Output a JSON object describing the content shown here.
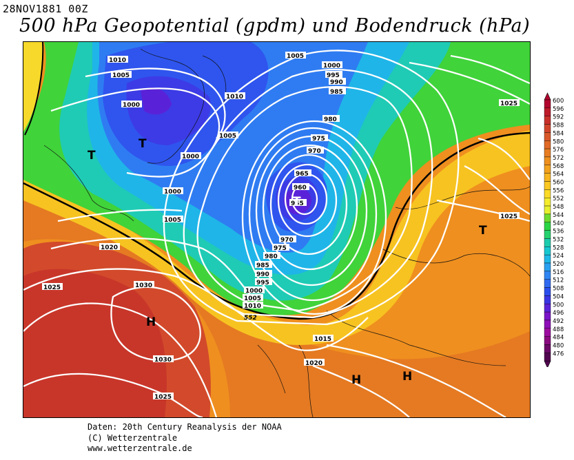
{
  "header": {
    "date": "28NOV1881 00Z",
    "title": "500 hPa Geopotential (gpdm) und Bodendruck (hPa)"
  },
  "footer": {
    "line1": "Daten: 20th Century Reanalysis der NOAA",
    "line2": "(C) Wetterzentrale",
    "line3": "www.wetterzentrale.de"
  },
  "legend": {
    "levels": [
      "600",
      "596",
      "592",
      "588",
      "584",
      "580",
      "576",
      "572",
      "568",
      "564",
      "560",
      "556",
      "552",
      "548",
      "544",
      "540",
      "536",
      "532",
      "528",
      "524",
      "520",
      "516",
      "512",
      "508",
      "504",
      "500",
      "496",
      "492",
      "488",
      "484",
      "480",
      "476"
    ],
    "colors": [
      "#b2052e",
      "#bd1a2a",
      "#c8302a",
      "#d2452b",
      "#d9582a",
      "#e06a26",
      "#e77d22",
      "#ee901e",
      "#f2a21e",
      "#f7b51f",
      "#fbc822",
      "#fbdb27",
      "#f5ec2c",
      "#e8f02e",
      "#6ddb2f",
      "#2bd545",
      "#26d26f",
      "#1dccad",
      "#18c8d1",
      "#1fb8e8",
      "#2aa0f0",
      "#2f86f3",
      "#2f6af0",
      "#2a4eec",
      "#3a35e3",
      "#5a22d8",
      "#7a14c8",
      "#8e0fb8",
      "#9c0c9e",
      "#8a0a80",
      "#6c0868",
      "#520650"
    ]
  },
  "map": {
    "isobars": {
      "labels": [
        "1010",
        "1005",
        "1000",
        "1010",
        "1005",
        "1000",
        "1005",
        "1000",
        "995",
        "990",
        "985",
        "980",
        "975",
        "970",
        "965",
        "960",
        "955",
        "970",
        "975",
        "980",
        "985",
        "990",
        "995",
        "1000",
        "1005",
        "1010",
        "1005",
        "1000",
        "1025",
        "1025",
        "1025",
        "1020",
        "1030",
        "1030",
        "1025",
        "1015",
        "1020"
      ]
    },
    "contour_label": "552",
    "pressure_centers": [
      {
        "label": "T"
      },
      {
        "label": "T"
      },
      {
        "label": "T"
      },
      {
        "label": "T"
      },
      {
        "label": "H"
      },
      {
        "label": "H"
      },
      {
        "label": "H"
      }
    ]
  }
}
